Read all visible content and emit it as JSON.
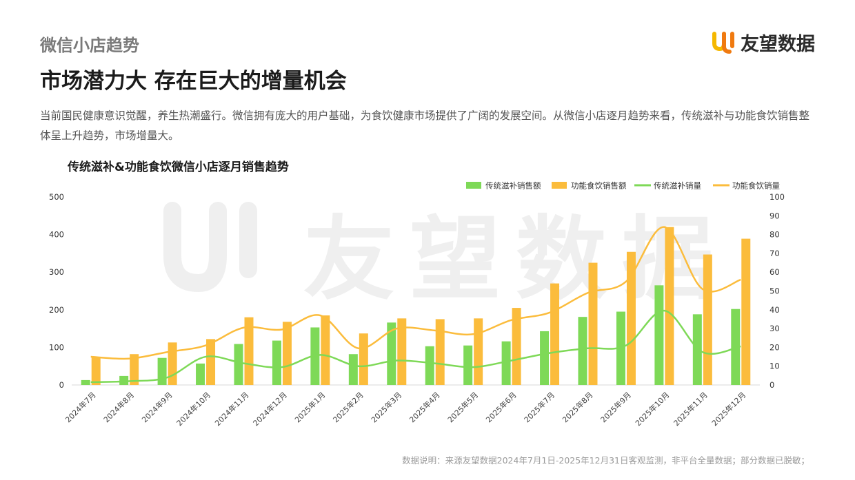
{
  "header": {
    "section_label": "微信小店趋势",
    "headline": "市场潜力大 存在巨大的增量机会",
    "description": "当前国民健康意识觉醒，养生热潮盛行。微信拥有庞大的用户基础，为食饮健康市场提供了广阔的发展空间。从微信小店逐月趋势来看，传统滋补与功能食饮销售整体呈上升趋势，市场增量大。"
  },
  "brand": {
    "name": "友望数据",
    "logo_icon": "uy-logo-icon",
    "logo_colors": [
      "#f5b800",
      "#f07a10"
    ]
  },
  "watermark": {
    "text": "友望数据"
  },
  "footnote": "数据说明：来源友望数据2024年7月1日-2025年12月31日客观监测，非平台全量数据；部分数据已脱敏；",
  "chart_data": {
    "type": "bar+line",
    "title": "传统滋补&功能食饮微信小店逐月销售趋势",
    "categories": [
      "2024年7月",
      "2024年8月",
      "2024年9月",
      "2024年10月",
      "2024年11月",
      "2024年12月",
      "2025年1月",
      "2025年2月",
      "2025年3月",
      "2025年4月",
      "2025年5月",
      "2025年6月",
      "2025年7月",
      "2025年8月",
      "2025年9月",
      "2025年10月",
      "2025年11月",
      "2025年12月"
    ],
    "y_left": {
      "min": 0,
      "max": 500,
      "ticks": [
        0,
        100,
        200,
        300,
        400,
        500
      ]
    },
    "y_right": {
      "min": 0,
      "max": 100,
      "ticks": [
        0,
        10,
        20,
        30,
        40,
        50,
        60,
        70,
        80,
        90,
        100
      ]
    },
    "legend_position": "top-right",
    "grid": false,
    "series": [
      {
        "name": "传统滋补销售额",
        "type": "bar",
        "axis": "left",
        "color": "#7ed957",
        "values": [
          13,
          24,
          72,
          57,
          109,
          118,
          153,
          82,
          166,
          103,
          105,
          116,
          143,
          181,
          195,
          265,
          188,
          202
        ]
      },
      {
        "name": "功能食饮销售额",
        "type": "bar",
        "axis": "left",
        "color": "#fbbc3c",
        "values": [
          75,
          82,
          113,
          122,
          180,
          168,
          185,
          137,
          177,
          175,
          177,
          205,
          270,
          325,
          354,
          420,
          347,
          389
        ]
      },
      {
        "name": "传统滋补销量",
        "type": "line",
        "axis": "right",
        "color": "#7ed957",
        "values": [
          1.5,
          2,
          4,
          15,
          11.5,
          9.5,
          16,
          10,
          13,
          11.5,
          9.5,
          13,
          17,
          19.5,
          21,
          39.5,
          17.5,
          20.5
        ]
      },
      {
        "name": "功能食饮销量",
        "type": "line",
        "axis": "right",
        "color": "#fbbc3c",
        "values": [
          15,
          14,
          17.5,
          21,
          30.5,
          29.5,
          37,
          19.5,
          30,
          29,
          27,
          34.5,
          38.5,
          49,
          55,
          84,
          51,
          56
        ]
      }
    ]
  }
}
